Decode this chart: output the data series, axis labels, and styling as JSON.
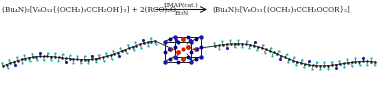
{
  "background_color": "#ffffff",
  "equation_left": "(Bu₄N)₂[V₆O₁₃{(OCH₂)₃CCH₂OH}₂] + 2(RCO)₂O",
  "arrow_above": "DMAP(cat.)",
  "arrow_below": "Et₃N",
  "equation_right": "(Bu₄N)₂[V₆O₁₃{(OCH₂)₃CCH₂OCOR}₂]",
  "text_color": "#1a1a1a",
  "text_fontsize": 5.2,
  "arrow_fontsize": 4.2,
  "fig_width": 3.78,
  "fig_height": 0.96,
  "dpi": 100,
  "carbon_color": "#1a1a1a",
  "cyan_color": "#00bfbf",
  "blue_color": "#1a1aaa",
  "red_color": "#cc2200",
  "dark_blue": "#000080"
}
